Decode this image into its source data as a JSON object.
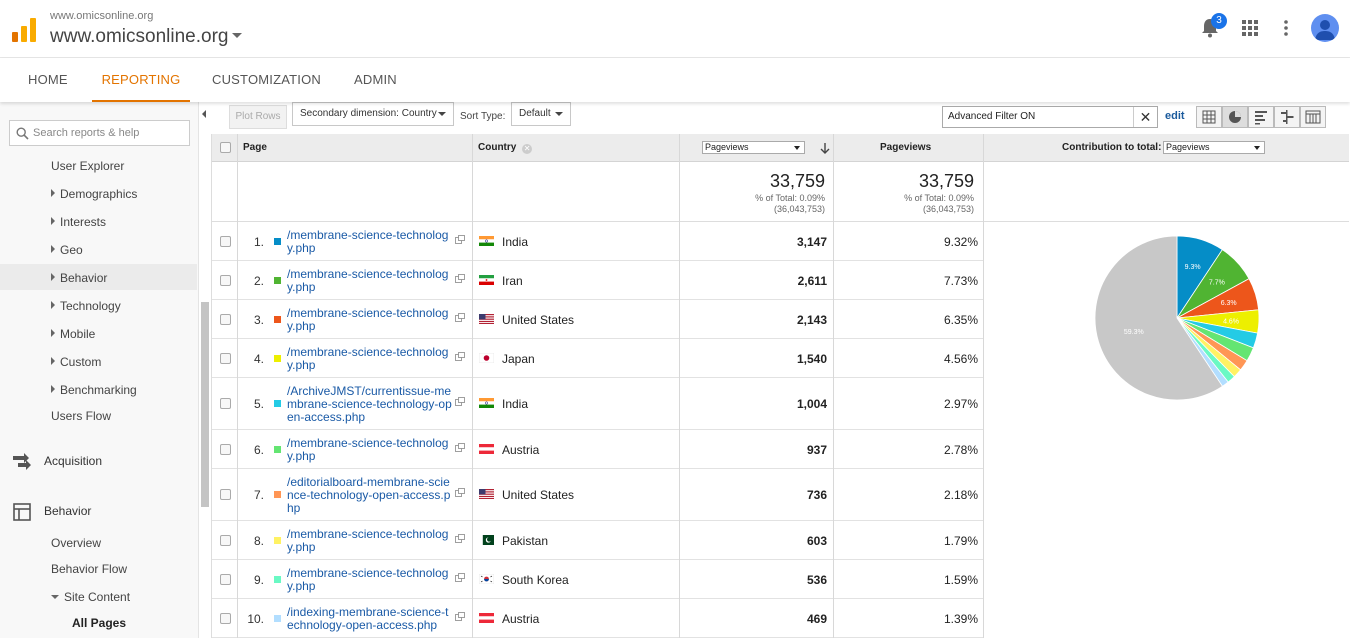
{
  "header": {
    "account_small": "www.omicsonline.org",
    "account_main": "www.omicsonline.org",
    "notification_count": "3"
  },
  "nav": {
    "tabs": [
      {
        "label": "HOME"
      },
      {
        "label": "REPORTING",
        "active": true
      },
      {
        "label": "CUSTOMIZATION"
      },
      {
        "label": "ADMIN"
      }
    ]
  },
  "sidebar": {
    "search_placeholder": "Search reports & help",
    "items": [
      {
        "label": "User Explorer"
      },
      {
        "label": "Demographics"
      },
      {
        "label": "Interests"
      },
      {
        "label": "Geo"
      },
      {
        "label": "Behavior"
      },
      {
        "label": "Technology"
      },
      {
        "label": "Mobile"
      },
      {
        "label": "Custom"
      },
      {
        "label": "Benchmarking"
      },
      {
        "label": "Users Flow"
      }
    ],
    "acquisition": "Acquisition",
    "behavior": "Behavior",
    "behavior_items": [
      {
        "label": "Overview"
      },
      {
        "label": "Behavior Flow"
      },
      {
        "label": "Site Content"
      },
      {
        "label": "All Pages"
      }
    ]
  },
  "toolbar": {
    "plot_rows": "Plot Rows",
    "secondary_dimension": "Secondary dimension: Country",
    "sort_type_label": "Sort Type:",
    "sort_type_value": "Default",
    "filter_value": "Advanced Filter ON",
    "edit": "edit"
  },
  "table": {
    "col_page": "Page",
    "col_country": "Country",
    "col_metric_select": "Pageviews",
    "col_pageviews": "Pageviews",
    "col_contribution": "Contribution to total:",
    "contribution_select": "Pageviews",
    "totals": {
      "left_value": "33,759",
      "left_pct": "% of Total: 0.09%",
      "left_total": "(36,043,753)",
      "right_value": "33,759",
      "right_pct": "% of Total: 0.09%",
      "right_total": "(36,043,753)"
    },
    "rows": [
      {
        "num": "1.",
        "page": "/membrane-science-technology.php",
        "country": "India",
        "pageviews": "3,147",
        "pct": "9.32%",
        "color": "#058dc7",
        "flag": "india"
      },
      {
        "num": "2.",
        "page": "/membrane-science-technology.php",
        "country": "Iran",
        "pageviews": "2,611",
        "pct": "7.73%",
        "color": "#50b432",
        "flag": "iran"
      },
      {
        "num": "3.",
        "page": "/membrane-science-technology.php",
        "country": "United States",
        "pageviews": "2,143",
        "pct": "6.35%",
        "color": "#ed561b",
        "flag": "us"
      },
      {
        "num": "4.",
        "page": "/membrane-science-technology.php",
        "country": "Japan",
        "pageviews": "1,540",
        "pct": "4.56%",
        "color": "#edef00",
        "flag": "japan"
      },
      {
        "num": "5.",
        "page": "/ArchiveJMST/currentissue-membrane-science-technology-open-access.php",
        "country": "India",
        "pageviews": "1,004",
        "pct": "2.97%",
        "color": "#24cbe5",
        "flag": "india"
      },
      {
        "num": "6.",
        "page": "/membrane-science-technology.php",
        "country": "Austria",
        "pageviews": "937",
        "pct": "2.78%",
        "color": "#64e572",
        "flag": "austria"
      },
      {
        "num": "7.",
        "page": "/editorialboard-membrane-science-technology-open-access.php",
        "country": "United States",
        "pageviews": "736",
        "pct": "2.18%",
        "color": "#ff9655",
        "flag": "us"
      },
      {
        "num": "8.",
        "page": "/membrane-science-technology.php",
        "country": "Pakistan",
        "pageviews": "603",
        "pct": "1.79%",
        "color": "#fff263",
        "flag": "pakistan"
      },
      {
        "num": "9.",
        "page": "/membrane-science-technology.php",
        "country": "South Korea",
        "pageviews": "536",
        "pct": "1.59%",
        "color": "#6af9c4",
        "flag": "korea"
      },
      {
        "num": "10.",
        "page": "/indexing-membrane-science-technology-open-access.php",
        "country": "Austria",
        "pageviews": "469",
        "pct": "1.39%",
        "color": "#b2deff",
        "flag": "austria"
      }
    ]
  },
  "chart_data": {
    "type": "pie",
    "slices": [
      {
        "value": 9.32,
        "label": "9.3%",
        "color": "#058dc7"
      },
      {
        "value": 7.73,
        "label": "7.7%",
        "color": "#50b432"
      },
      {
        "value": 6.35,
        "label": "6.3%",
        "color": "#ed561b"
      },
      {
        "value": 4.56,
        "label": "4.6%",
        "color": "#edef00"
      },
      {
        "value": 2.97,
        "label": "",
        "color": "#24cbe5"
      },
      {
        "value": 2.78,
        "label": "",
        "color": "#64e572"
      },
      {
        "value": 2.18,
        "label": "",
        "color": "#ff9655"
      },
      {
        "value": 1.79,
        "label": "",
        "color": "#fff263"
      },
      {
        "value": 1.59,
        "label": "",
        "color": "#6af9c4"
      },
      {
        "value": 1.39,
        "label": "",
        "color": "#b2deff"
      },
      {
        "value": 59.34,
        "label": "59.3%",
        "color": "#c8c8c8"
      }
    ]
  }
}
